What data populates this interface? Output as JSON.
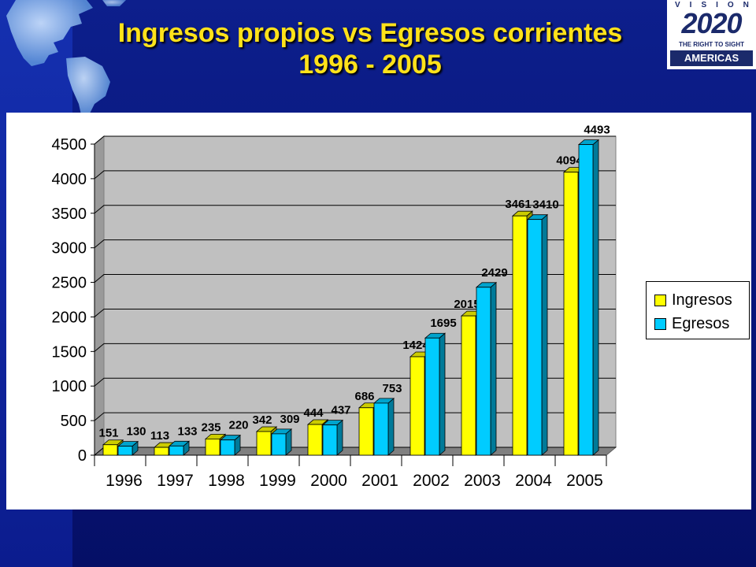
{
  "title": {
    "line1": "Ingresos propios vs Egresos corrientes",
    "line2": "1996 - 2005"
  },
  "logo": {
    "top": "VISION",
    "number": "2020",
    "tagline": "THE RIGHT TO SIGHT",
    "region": "AMERICAS"
  },
  "colors": {
    "ingresos": "#ffff00",
    "egresos": "#00ccff",
    "title": "#ffe21a",
    "background": "#0a1a85"
  },
  "chart_data": {
    "type": "bar",
    "title": "",
    "xlabel": "",
    "ylabel": "",
    "categories": [
      "1996",
      "1997",
      "1998",
      "1999",
      "2000",
      "2001",
      "2002",
      "2003",
      "2004",
      "2005"
    ],
    "series": [
      {
        "name": "Ingresos",
        "values": [
          151,
          113,
          235,
          342,
          444,
          686,
          1424,
          2015,
          3461,
          4094
        ]
      },
      {
        "name": "Egresos",
        "values": [
          130,
          133,
          220,
          309,
          437,
          753,
          1695,
          2429,
          3410,
          4493
        ]
      }
    ],
    "ylim": [
      0,
      4500
    ],
    "yticks": [
      0,
      500,
      1000,
      1500,
      2000,
      2500,
      3000,
      3500,
      4000,
      4500
    ],
    "grid": true,
    "legend": "right",
    "style": "3d"
  }
}
